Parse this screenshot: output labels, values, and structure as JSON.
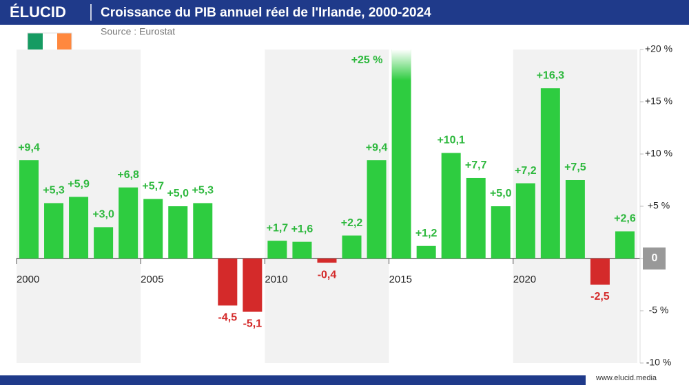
{
  "header": {
    "logo": "ÉLUCID"
  },
  "footer": {
    "url": "www.elucid.media"
  },
  "chart_data": {
    "type": "bar",
    "title": "Croissance du PIB annuel réel de l'Irlande, 2000-2024",
    "subtitle": "Source : Eurostat",
    "x": [
      2000,
      2001,
      2002,
      2003,
      2004,
      2005,
      2006,
      2007,
      2008,
      2009,
      2010,
      2011,
      2012,
      2013,
      2014,
      2015,
      2016,
      2017,
      2018,
      2019,
      2020,
      2021,
      2022,
      2023,
      2024
    ],
    "values": [
      9.4,
      5.3,
      5.9,
      3.0,
      6.8,
      5.7,
      5.0,
      5.3,
      -4.5,
      -5.1,
      1.7,
      1.6,
      -0.4,
      2.2,
      9.4,
      25,
      1.2,
      10.1,
      7.7,
      5.0,
      7.2,
      16.3,
      7.5,
      -2.5,
      2.6
    ],
    "value_labels": [
      "+9,4",
      "+5,3",
      "+5,9",
      "+3,0",
      "+6,8",
      "+5,7",
      "+5,0",
      "+5,3",
      "-4,5",
      "-5,1",
      "+1,7",
      "+1,6",
      "-0,4",
      "+2,2",
      "+9,4",
      "+25 %",
      "+1,2",
      "+10,1",
      "+7,7",
      "+5,0",
      "+7,2",
      "+16,3",
      "+7,5",
      "-2,5",
      "+2,6"
    ],
    "color": "#2ecc40",
    "negative_color": "#d42a2a",
    "xticks": [
      2000,
      2005,
      2010,
      2015,
      2020
    ],
    "ylim": [
      -10,
      20
    ],
    "yticks": [
      {
        "value": -10,
        "label": "-10 %"
      },
      {
        "value": -5,
        "label": "-5 %"
      },
      0,
      {
        "value": 5,
        "label": "+5 %"
      },
      {
        "value": 10,
        "label": "+10 %"
      },
      {
        "value": 15,
        "label": "+15 %"
      },
      {
        "value": 20,
        "label": "+20 %"
      }
    ],
    "grid": false
  }
}
